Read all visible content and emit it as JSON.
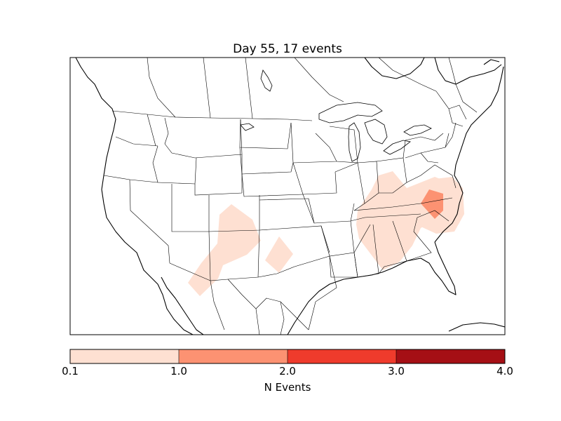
{
  "title": "Day 55, 17 events",
  "colorbar": {
    "label": "N Events",
    "ticks": [
      "0.1",
      "1.0",
      "2.0",
      "3.0",
      "4.0"
    ],
    "colors": [
      "#fee0d2",
      "#fc9272",
      "#ef3b2c",
      "#a50f15"
    ]
  },
  "map": {
    "region": "Contiguous United States",
    "projection": "Lambert conformal",
    "event_regions": [
      {
        "area": "New Mexico / Arizona border southwest band",
        "bin": 0
      },
      {
        "area": "West Texas / Oklahoma panhandle",
        "bin": 0
      },
      {
        "area": "Tennessee / Alabama / Georgia / Carolinas",
        "bin": 0
      },
      {
        "area": "Virginia / North Carolina",
        "bin": 0
      },
      {
        "area": "Northern North Carolina core",
        "bin": 1
      }
    ]
  }
}
